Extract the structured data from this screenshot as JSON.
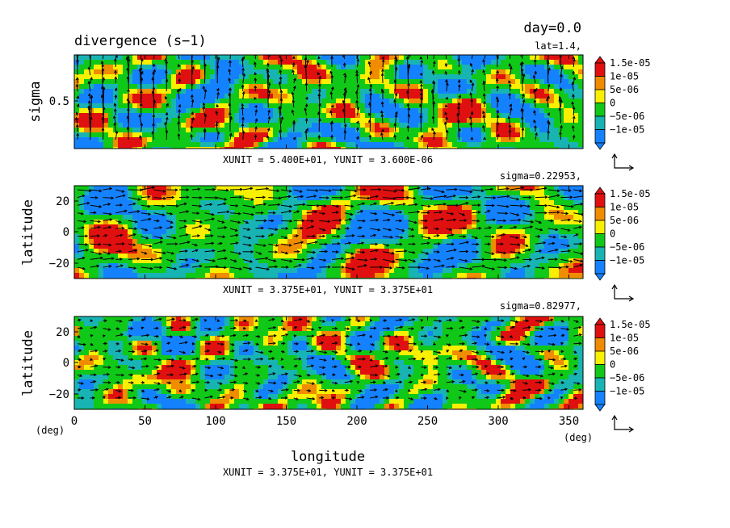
{
  "title": "divergence (s−1)",
  "time_label": "day=0.0",
  "colorbar": {
    "labels": [
      "1.5e-05",
      "1e-05",
      "5e-06",
      "0",
      "−5e-06",
      "−1e-05"
    ],
    "colors": [
      "#e01010",
      "#f08c00",
      "#f8f000",
      "#10c818",
      "#18b4b4",
      "#1482ff"
    ]
  },
  "panels": [
    {
      "id": "top",
      "slice_label": "lat=1.4,",
      "ylabel": "sigma",
      "yticks": [
        "0.5"
      ],
      "unit_label": "XUNIT = 5.400E+01, YUNIT = 3.600E-06"
    },
    {
      "id": "middle",
      "slice_label": "sigma=0.22953,",
      "ylabel": "latitude",
      "yticks": [
        "20",
        "0",
        "−20"
      ],
      "unit_label": "XUNIT = 3.375E+01, YUNIT = 3.375E+01"
    },
    {
      "id": "bottom",
      "slice_label": "sigma=0.82977,",
      "ylabel": "latitude",
      "yticks": [
        "20",
        "0",
        "−20"
      ],
      "unit_label": "XUNIT = 3.375E+01, YUNIT = 3.375E+01"
    }
  ],
  "xaxis": {
    "label": "longitude",
    "ticks": [
      "0",
      "50",
      "100",
      "150",
      "200",
      "250",
      "300",
      "350"
    ],
    "unit_left": "(deg)",
    "unit_right": "(deg)"
  },
  "chart_data": {
    "type": "heatmap",
    "title": "divergence (s−1)",
    "subtitle": "day=0.0",
    "xlabel": "longitude",
    "x_unit": "deg",
    "xlim": [
      0,
      360
    ],
    "x_ticks": [
      0,
      50,
      100,
      150,
      200,
      250,
      300,
      350
    ],
    "levels": [
      -1e-05,
      -5e-06,
      0,
      5e-06,
      1e-05,
      1.5e-05
    ],
    "panels": [
      {
        "slice": "lat=1.4",
        "ylabel": "sigma",
        "y_ticks": [
          0.5
        ],
        "overlay": "wind vectors",
        "vector_unit": {
          "x": 54.0,
          "y": 3.6e-06
        }
      },
      {
        "slice": "sigma=0.22953",
        "ylabel": "latitude",
        "ylim": [
          -30,
          30
        ],
        "y_ticks": [
          20,
          0,
          -20
        ],
        "overlay": "wind vectors",
        "vector_unit": {
          "x": 33.75,
          "y": 33.75
        }
      },
      {
        "slice": "sigma=0.82977",
        "ylabel": "latitude",
        "ylim": [
          -30,
          30
        ],
        "y_ticks": [
          20,
          0,
          -20
        ],
        "overlay": "wind vectors",
        "vector_unit": {
          "x": 33.75,
          "y": 33.75
        }
      }
    ]
  }
}
